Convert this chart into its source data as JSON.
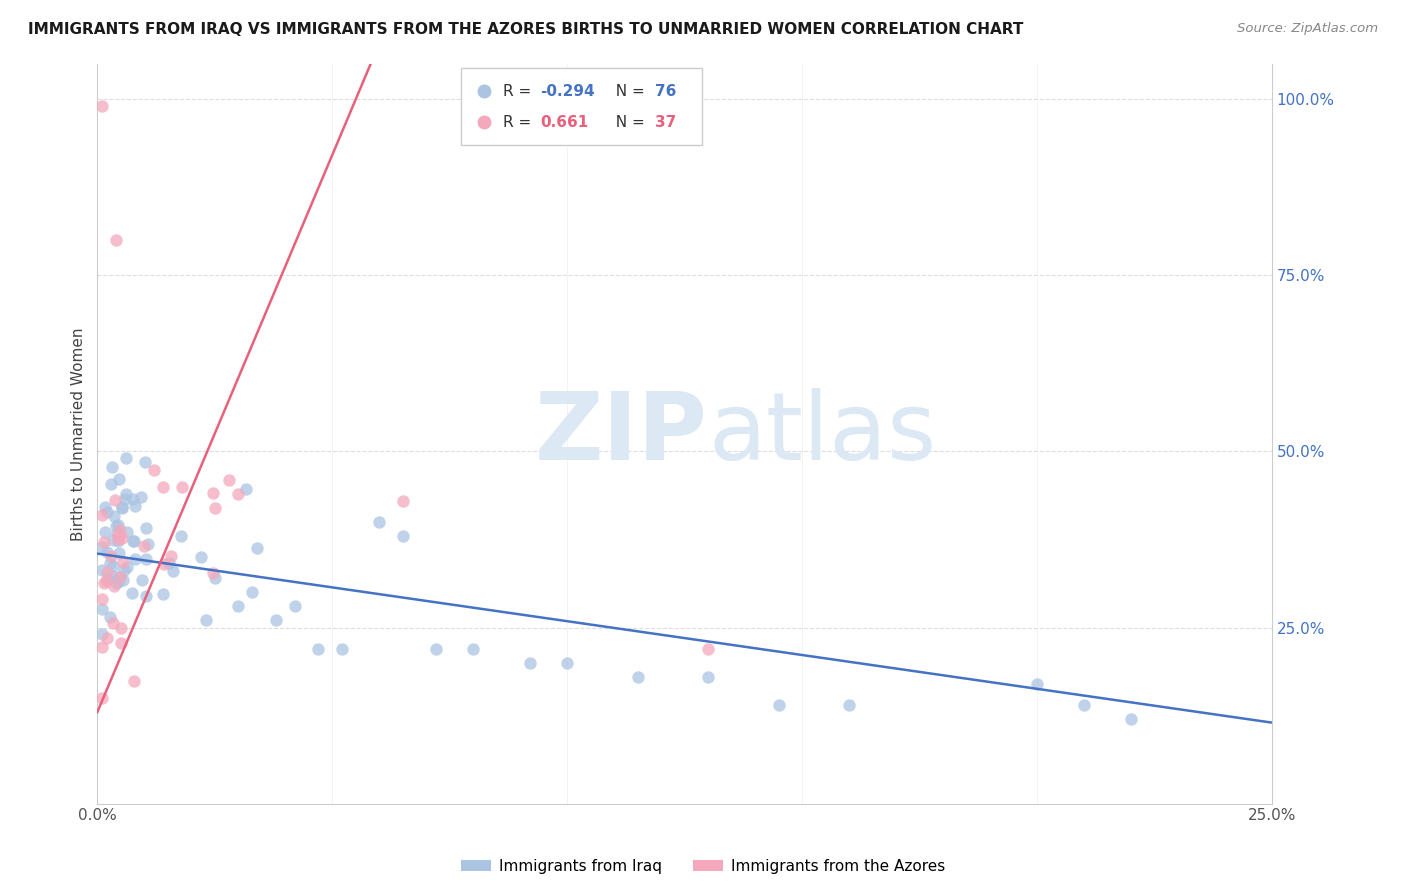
{
  "title": "IMMIGRANTS FROM IRAQ VS IMMIGRANTS FROM THE AZORES BIRTHS TO UNMARRIED WOMEN CORRELATION CHART",
  "source_text": "Source: ZipAtlas.com",
  "ylabel": "Births to Unmarried Women",
  "legend_label_blue": "Immigrants from Iraq",
  "legend_label_pink": "Immigrants from the Azores",
  "r_blue": -0.294,
  "n_blue": 76,
  "r_pink": 0.661,
  "n_pink": 37,
  "xlim": [
    0,
    0.25
  ],
  "ylim": [
    0,
    1.05
  ],
  "color_blue": "#aac4e2",
  "color_pink": "#f4a8bb",
  "line_color_blue": "#4472c4",
  "line_color_pink": "#e8607a",
  "watermark_zip": "ZIP",
  "watermark_atlas": "atlas",
  "watermark_color": "#dce8f5",
  "background": "#ffffff"
}
